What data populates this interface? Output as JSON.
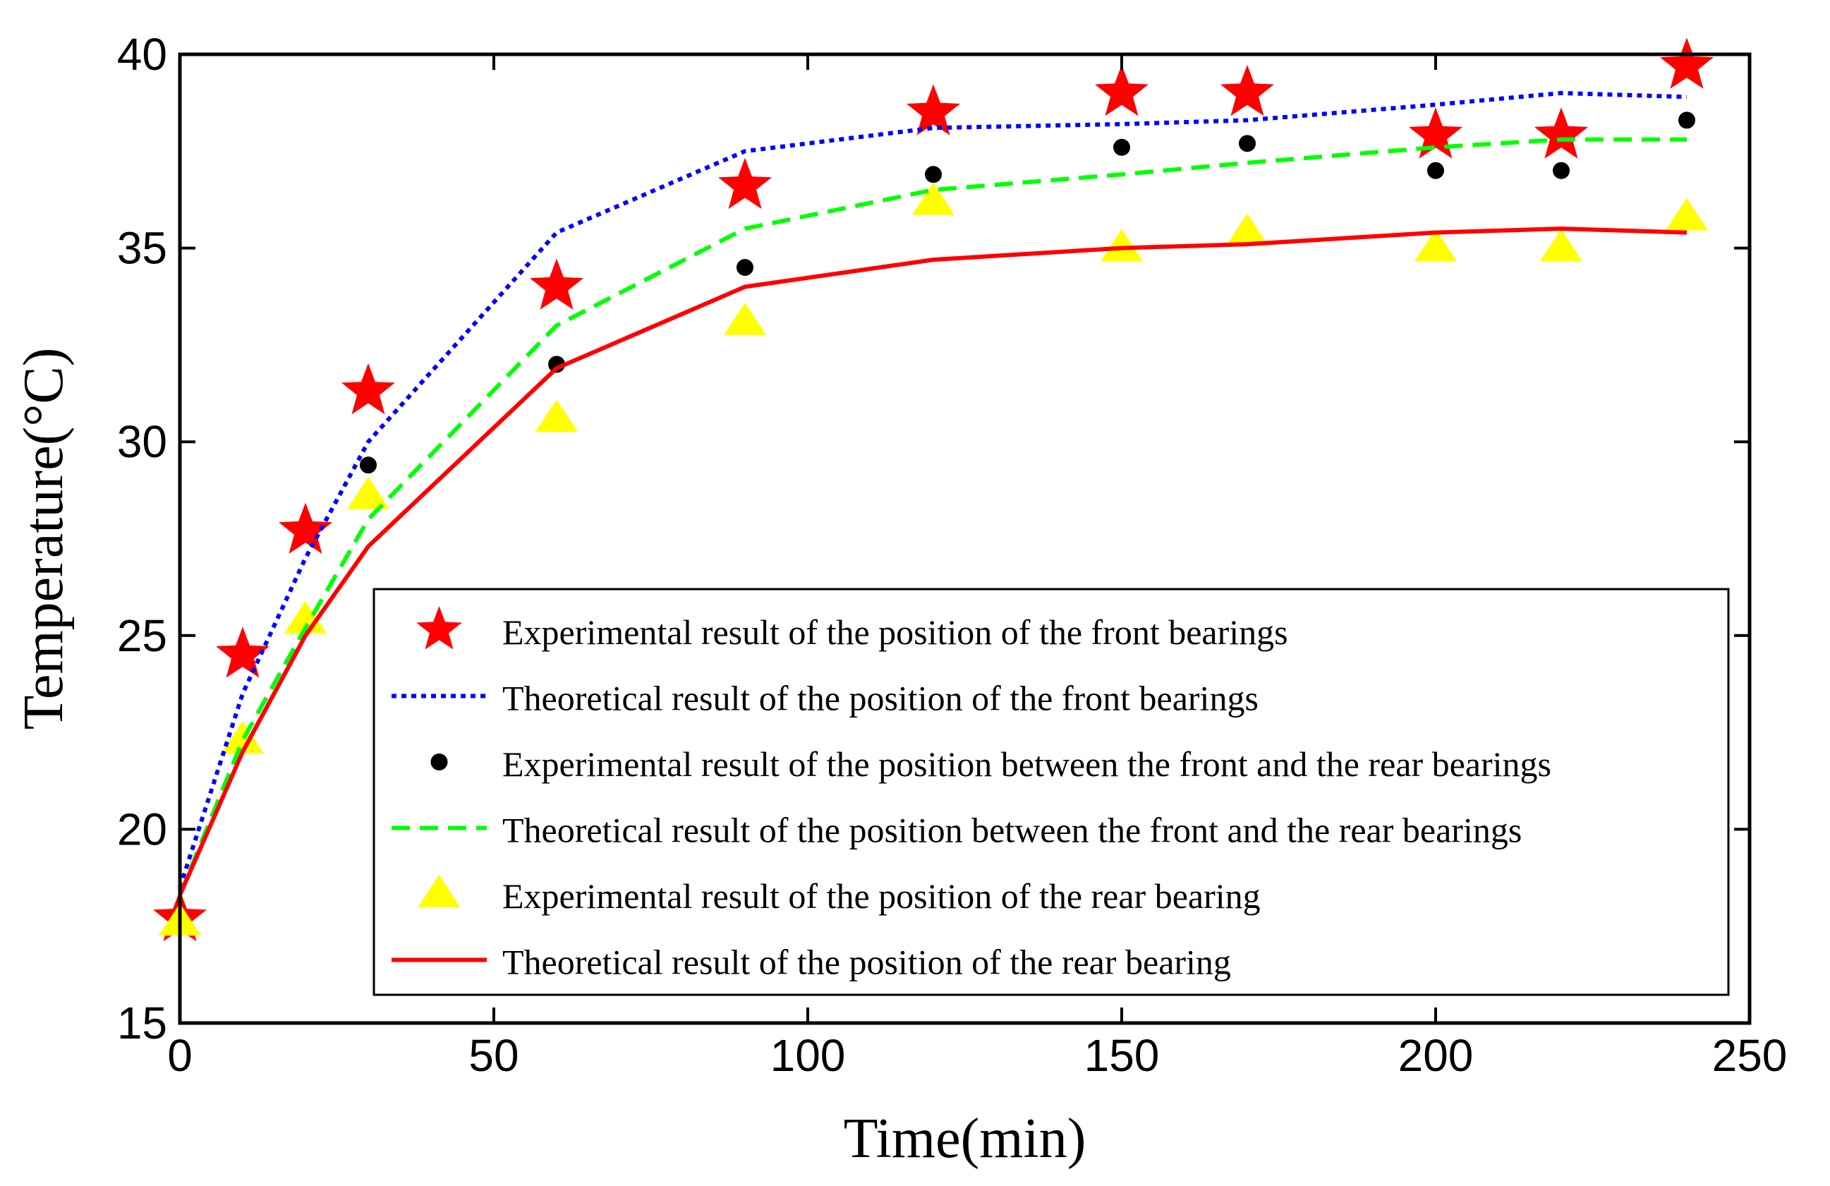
{
  "chart_data": {
    "type": "line",
    "title": "",
    "xlabel": "Time(min)",
    "ylabel": "Temperature(°C)",
    "xlim": [
      0,
      250
    ],
    "ylim": [
      15,
      40
    ],
    "xticks": [
      0,
      50,
      100,
      150,
      200,
      250
    ],
    "yticks": [
      15,
      20,
      25,
      30,
      35,
      40
    ],
    "grid": false,
    "legend_position": "lower-right",
    "series": [
      {
        "name": "Experimental result of the position of the front bearings",
        "style": "markers",
        "marker": "star",
        "color": "#ff0000",
        "x": [
          0,
          10,
          20,
          30,
          60,
          90,
          120,
          150,
          170,
          200,
          220,
          240
        ],
        "y": [
          17.7,
          24.5,
          27.7,
          31.3,
          34.0,
          36.6,
          38.5,
          39.0,
          39.0,
          37.9,
          37.9,
          39.7
        ]
      },
      {
        "name": "Theoretical result of the position of the front bearings",
        "style": "dotted",
        "color": "#0000ff",
        "x": [
          0,
          10,
          20,
          30,
          60,
          90,
          120,
          150,
          170,
          200,
          220,
          240
        ],
        "y": [
          18.5,
          23.5,
          27.0,
          30.0,
          35.4,
          37.5,
          38.1,
          38.2,
          38.3,
          38.7,
          39.0,
          38.9
        ]
      },
      {
        "name": "Experimental result of the position between the front and the rear bearings",
        "style": "markers",
        "marker": "circle",
        "color": "#000000",
        "x": [
          0,
          10,
          20,
          30,
          60,
          90,
          120,
          150,
          170,
          200,
          220,
          240
        ],
        "y": [
          17.7,
          22.3,
          25.4,
          29.4,
          32.0,
          34.5,
          36.9,
          37.6,
          37.7,
          37.0,
          37.0,
          38.3
        ]
      },
      {
        "name": "Theoretical result of the position between the front and the rear bearings",
        "style": "dashed",
        "color": "#00ff00",
        "x": [
          0,
          10,
          20,
          30,
          60,
          90,
          120,
          150,
          170,
          200,
          220,
          240
        ],
        "y": [
          18.3,
          22.3,
          25.2,
          28.0,
          33.0,
          35.5,
          36.5,
          36.9,
          37.2,
          37.6,
          37.8,
          37.8
        ]
      },
      {
        "name": "Experimental result of the position of the rear bearing",
        "style": "markers",
        "marker": "triangle",
        "color": "#ffff00",
        "x": [
          0,
          10,
          20,
          30,
          60,
          90,
          120,
          150,
          170,
          200,
          220,
          240
        ],
        "y": [
          17.6,
          22.3,
          25.4,
          28.6,
          30.6,
          33.1,
          36.2,
          35.0,
          35.4,
          35.0,
          35.0,
          35.8
        ]
      },
      {
        "name": "Theoretical result of the position of the rear bearing",
        "style": "solid",
        "color": "#ff0000",
        "x": [
          0,
          10,
          20,
          30,
          60,
          90,
          120,
          150,
          170,
          200,
          220,
          240
        ],
        "y": [
          18.3,
          22.0,
          25.0,
          27.3,
          31.9,
          34.0,
          34.7,
          35.0,
          35.1,
          35.4,
          35.5,
          35.4
        ]
      }
    ]
  }
}
